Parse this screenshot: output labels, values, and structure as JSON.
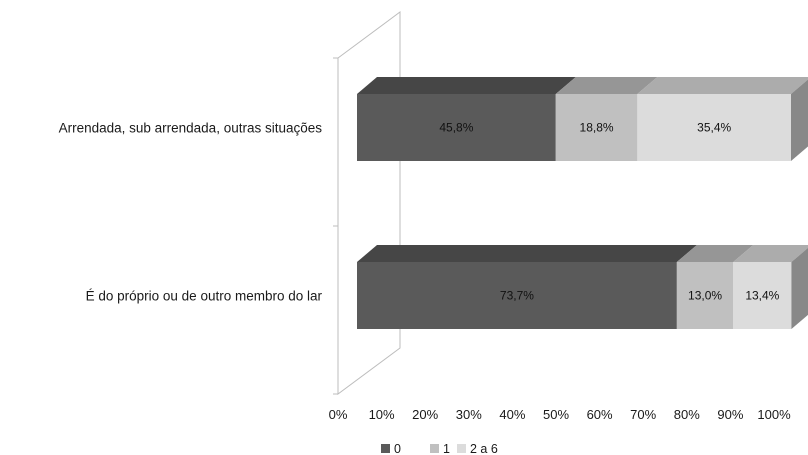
{
  "chart_data": {
    "type": "bar",
    "orientation": "horizontal",
    "stacked": "percent",
    "three_d": true,
    "categories": [
      "Arrendada, sub arrendada, outras situações",
      "É do próprio ou de outro membro do lar"
    ],
    "series": [
      {
        "name": "0",
        "values": [
          45.8,
          73.7
        ],
        "labels": [
          "45,8%",
          "73,7%"
        ],
        "color": "#5a5a5a"
      },
      {
        "name": "1",
        "values": [
          18.8,
          13.0
        ],
        "labels": [
          "18,8%",
          "13,0%"
        ],
        "color": "#c0c0c0"
      },
      {
        "name": "2 a 6",
        "values": [
          35.4,
          13.4
        ],
        "labels": [
          "35,4%",
          "13,4%"
        ],
        "color": "#dcdcdc"
      }
    ],
    "x_ticks": [
      "0%",
      "10%",
      "20%",
      "30%",
      "40%",
      "50%",
      "60%",
      "70%",
      "80%",
      "90%",
      "100%"
    ],
    "xlim": [
      0,
      100
    ],
    "grid": false,
    "legend_position": "bottom",
    "title": "",
    "xlabel": "",
    "ylabel": ""
  }
}
